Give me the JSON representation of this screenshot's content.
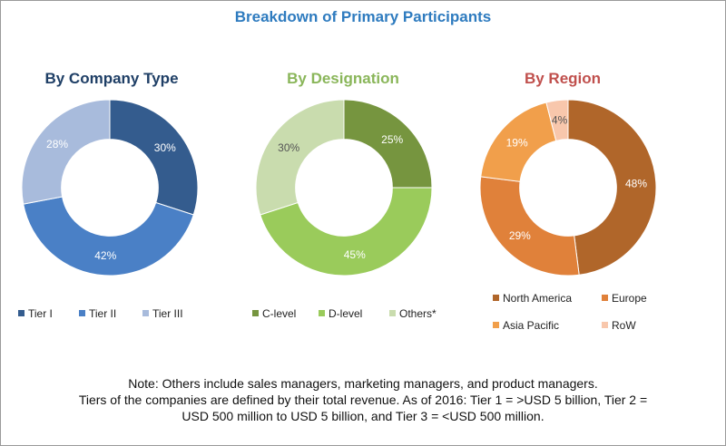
{
  "title": "Breakdown of Primary Participants",
  "chart_data": [
    {
      "type": "pie",
      "title": "By Company Type",
      "categories": [
        "Tier I",
        "Tier II",
        "Tier III"
      ],
      "values": [
        30,
        42,
        28
      ],
      "labels": [
        "30%",
        "42%",
        "28%"
      ],
      "colors": [
        "#345c8e",
        "#4a80c6",
        "#a8bbdc"
      ],
      "label_colors": [
        "#ffffff",
        "#ffffff",
        "#ffffff"
      ],
      "hole": 0.55,
      "legend": "bottom"
    },
    {
      "type": "pie",
      "title": "By Designation",
      "categories": [
        "C-level",
        "D-level",
        "Others*"
      ],
      "values": [
        25,
        45,
        30
      ],
      "labels": [
        "25%",
        "45%",
        "30%"
      ],
      "colors": [
        "#76953f",
        "#9acb5b",
        "#c9dcae"
      ],
      "label_colors": [
        "#ffffff",
        "#ffffff",
        "#555555"
      ],
      "hole": 0.55,
      "legend": "bottom"
    },
    {
      "type": "pie",
      "title": "By Region",
      "categories": [
        "North America",
        "Europe",
        "Asia Pacific",
        "RoW"
      ],
      "values": [
        48,
        29,
        19,
        4
      ],
      "labels": [
        "48%",
        "29%",
        "19%",
        "4%"
      ],
      "colors": [
        "#b0662a",
        "#e0813a",
        "#f19f4b",
        "#f8c7ac"
      ],
      "label_colors": [
        "#ffffff",
        "#ffffff",
        "#ffffff",
        "#555555"
      ],
      "hole": 0.55,
      "legend": "bottom"
    }
  ],
  "notes": {
    "line1": "Note: Others include sales managers, marketing managers, and product managers.",
    "line2": "Tiers of the companies are defined by their total revenue. As of 2016: Tier 1 = >USD 5 billion, Tier 2 =",
    "line3": "USD 500 million to USD 5 billion, and Tier 3 = <USD 500 million."
  }
}
